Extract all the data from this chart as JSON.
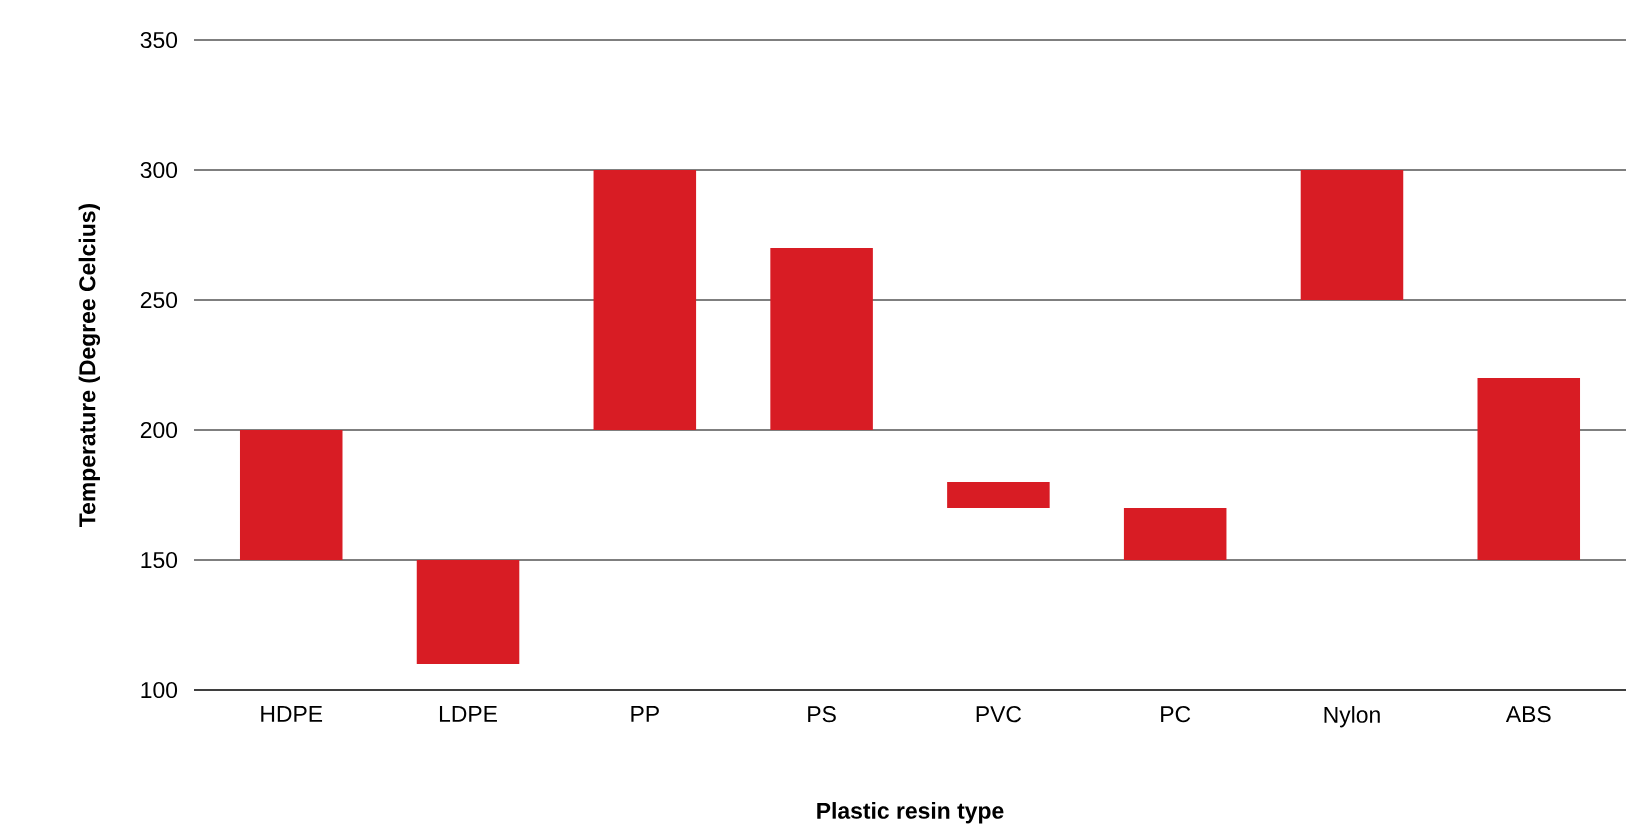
{
  "chart_data": {
    "type": "bar",
    "xlabel": "Plastic resin type",
    "ylabel": "Temperature (Degree Celcius)",
    "categories": [
      "HDPE",
      "LDPE",
      "PP",
      "PS",
      "PVC",
      "PC",
      "Nylon",
      "ABS"
    ],
    "base": [
      150,
      110,
      200,
      200,
      170,
      150,
      250,
      150
    ],
    "values": [
      50,
      40,
      100,
      70,
      10,
      20,
      50,
      70
    ],
    "color": "#d81c24",
    "ylim": [
      100,
      350
    ],
    "yticks": [
      100,
      150,
      200,
      250,
      300,
      350
    ],
    "grid": "y"
  }
}
